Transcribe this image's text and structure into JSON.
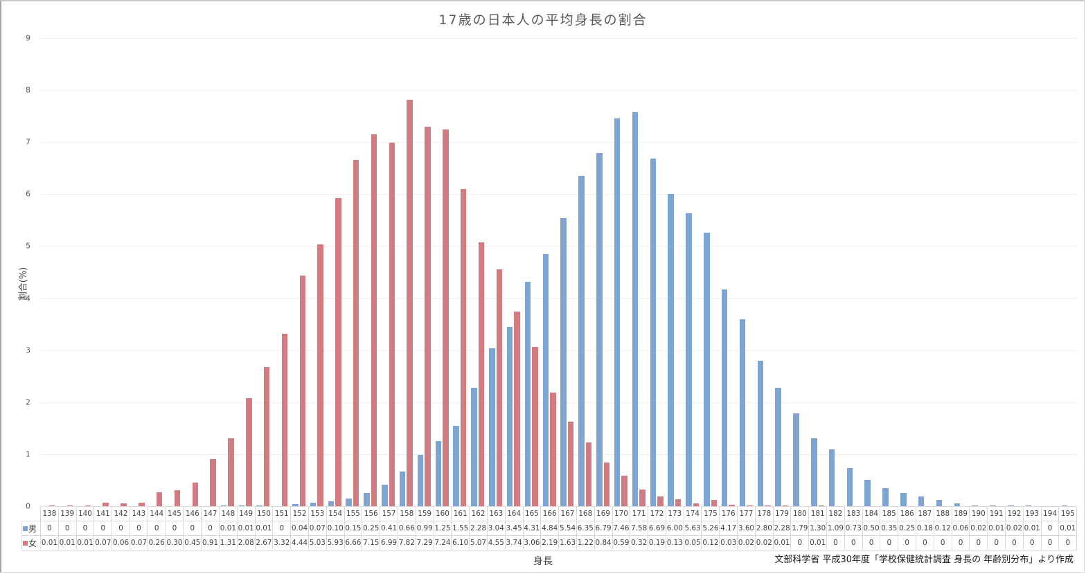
{
  "chart_data": {
    "type": "bar",
    "title": "17歳の日本人の平均身長の割合",
    "xlabel": "身長",
    "ylabel": "割合(%)",
    "ylim": [
      0,
      9
    ],
    "yticks": [
      "0",
      "1",
      "2",
      "3",
      "4",
      "5",
      "6",
      "7",
      "8",
      "9"
    ],
    "grid": true,
    "legend_position": "data-table",
    "source_note": "文部科学省 平成30年度「学校保健統計調査 身長の 年齢別分布」より作成",
    "categories": [
      "138",
      "139",
      "140",
      "141",
      "142",
      "143",
      "144",
      "145",
      "146",
      "147",
      "148",
      "149",
      "150",
      "151",
      "152",
      "153",
      "154",
      "155",
      "156",
      "157",
      "158",
      "159",
      "160",
      "161",
      "162",
      "163",
      "164",
      "165",
      "166",
      "167",
      "168",
      "169",
      "170",
      "171",
      "172",
      "173",
      "174",
      "175",
      "176",
      "177",
      "178",
      "179",
      "180",
      "181",
      "182",
      "183",
      "184",
      "185",
      "186",
      "187",
      "188",
      "189",
      "190",
      "191",
      "192",
      "193",
      "194",
      "195"
    ],
    "series": [
      {
        "name": "男",
        "color": "#7ea4d2",
        "values": [
          0,
          0,
          0,
          0,
          0,
          0,
          0,
          0,
          0,
          0,
          0.01,
          0.01,
          0.01,
          0,
          0.04,
          0.07,
          0.1,
          0.15,
          0.25,
          0.41,
          0.66,
          0.99,
          1.25,
          1.55,
          2.28,
          3.04,
          3.45,
          4.31,
          4.84,
          5.54,
          6.35,
          6.79,
          7.46,
          7.58,
          6.69,
          6.0,
          5.63,
          5.26,
          4.17,
          3.6,
          2.8,
          2.28,
          1.79,
          1.3,
          1.09,
          0.73,
          0.5,
          0.35,
          0.25,
          0.18,
          0.12,
          0.06,
          0.02,
          0.01,
          0.02,
          0.01,
          0,
          0.01
        ],
        "labels": [
          "0",
          "0",
          "0",
          "0",
          "0",
          "0",
          "0",
          "0",
          "0",
          "0",
          "0.01",
          "0.01",
          "0.01",
          "0",
          "0.04",
          "0.07",
          "0.10",
          "0.15",
          "0.25",
          "0.41",
          "0.66",
          "0.99",
          "1.25",
          "1.55",
          "2.28",
          "3.04",
          "3.45",
          "4.31",
          "4.84",
          "5.54",
          "6.35",
          "6.79",
          "7.46",
          "7.58",
          "6.69",
          "6.00",
          "5.63",
          "5.26",
          "4.17",
          "3.60",
          "2.80",
          "2.28",
          "1.79",
          "1.30",
          "1.09",
          "0.73",
          "0.50",
          "0.35",
          "0.25",
          "0.18",
          "0.12",
          "0.06",
          "0.02",
          "0.01",
          "0.02",
          "0.01",
          "0",
          "0.01"
        ]
      },
      {
        "name": "女",
        "color": "#d27b80",
        "values": [
          0.01,
          0.01,
          0.01,
          0.07,
          0.06,
          0.07,
          0.26,
          0.3,
          0.45,
          0.91,
          1.31,
          2.08,
          2.67,
          3.32,
          4.44,
          5.03,
          5.93,
          6.66,
          7.15,
          6.99,
          7.82,
          7.29,
          7.24,
          6.1,
          5.07,
          4.55,
          3.74,
          3.06,
          2.19,
          1.63,
          1.22,
          0.84,
          0.59,
          0.32,
          0.19,
          0.13,
          0.05,
          0.12,
          0.03,
          0.02,
          0.02,
          0.01,
          0,
          0.01,
          0,
          0,
          0,
          0,
          0,
          0,
          0,
          0,
          0,
          0,
          0,
          0,
          0,
          0
        ],
        "labels": [
          "0.01",
          "0.01",
          "0.01",
          "0.07",
          "0.06",
          "0.07",
          "0.26",
          "0.30",
          "0.45",
          "0.91",
          "1.31",
          "2.08",
          "2.67",
          "3.32",
          "4.44",
          "5.03",
          "5.93",
          "6.66",
          "7.15",
          "6.99",
          "7.82",
          "7.29",
          "7.24",
          "6.10",
          "5.07",
          "4.55",
          "3.74",
          "3.06",
          "2.19",
          "1.63",
          "1.22",
          "0.84",
          "0.59",
          "0.32",
          "0.19",
          "0.13",
          "0.05",
          "0.12",
          "0.03",
          "0.02",
          "0.02",
          "0.01",
          "0",
          "0.01",
          "0",
          "0",
          "0",
          "0",
          "0",
          "0",
          "0",
          "0",
          "0",
          "0",
          "0",
          "0",
          "0",
          "0"
        ]
      }
    ]
  }
}
